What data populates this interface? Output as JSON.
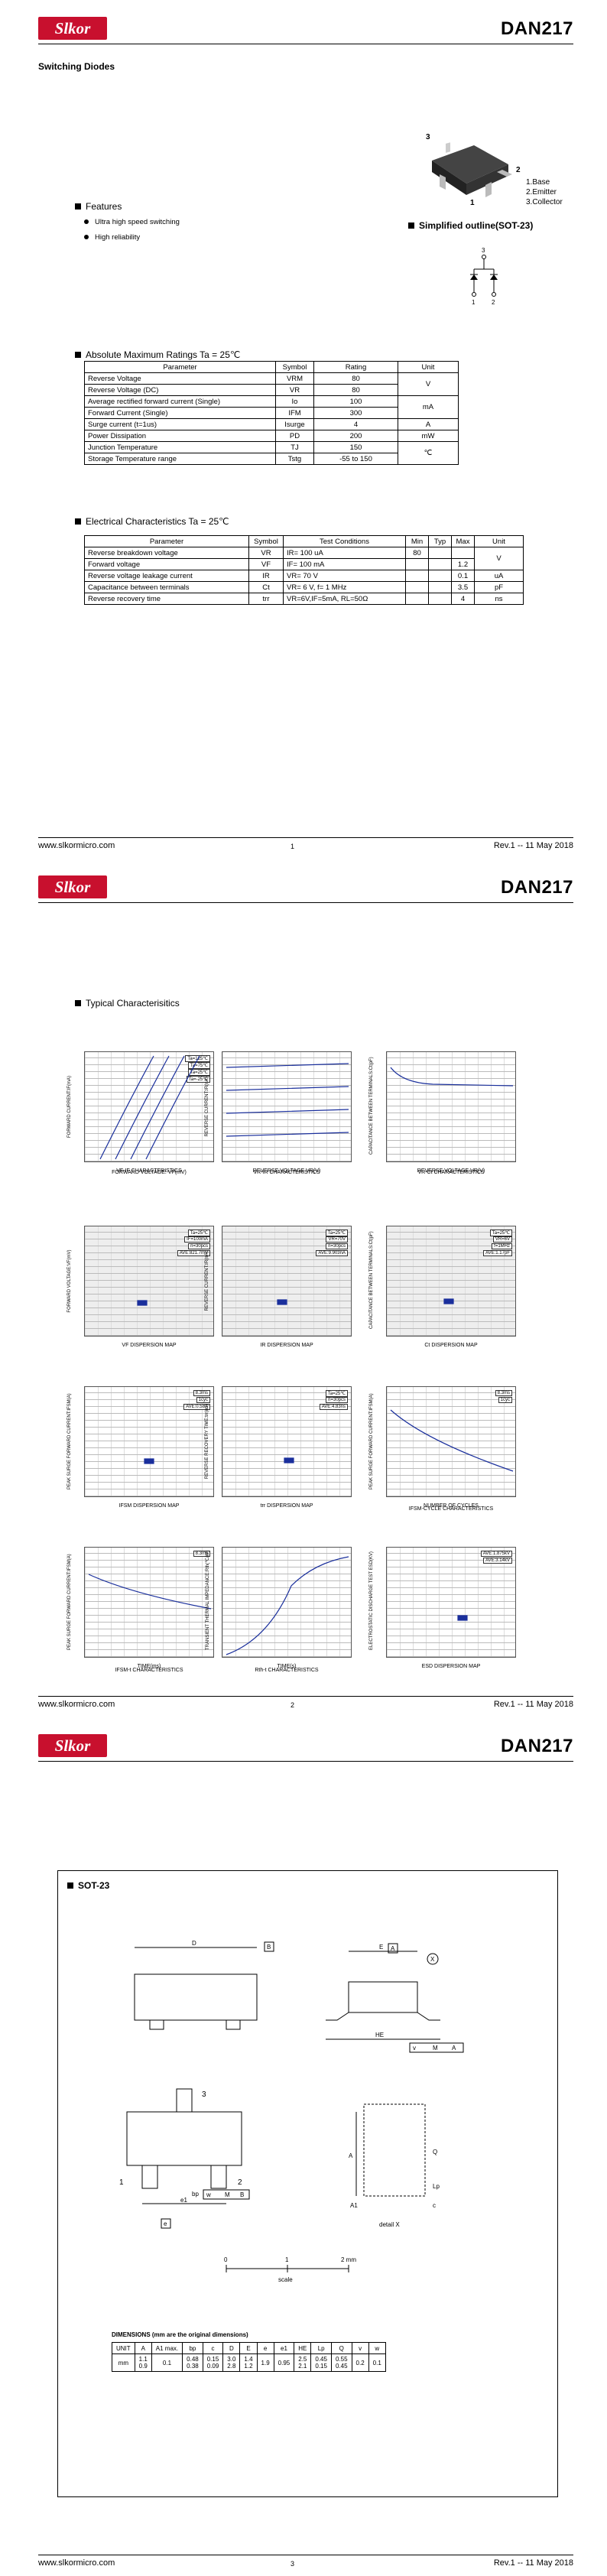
{
  "part": "DAN217",
  "brand": "Slkor",
  "subtitle": "Switching Diodes",
  "features": {
    "title": "Features",
    "items": [
      "Ultra high speed switching",
      "High reliability"
    ]
  },
  "pins": {
    "n3": "3",
    "n2": "2",
    "n1": "1",
    "items": [
      "1.Base",
      "2.Emitter",
      "3.Collector"
    ]
  },
  "outline_title": "Simplified outline(SOT-23)",
  "amr": {
    "title": "Absolute Maximum Ratings Ta = 25℃",
    "headers": [
      "Parameter",
      "Symbol",
      "Rating",
      "Unit"
    ],
    "rows": [
      [
        "Reverse  Voltage",
        "VRM",
        "80"
      ],
      [
        "Reverse  Voltage (DC)",
        "VR",
        "80"
      ],
      [
        "Average rectified forward current (Single)",
        "Io",
        "100"
      ],
      [
        "Forward  Current  (Single)",
        "IFM",
        "300"
      ],
      [
        "Surge current (t=1us)",
        "Isurge",
        "4"
      ],
      [
        "Power Dissipation",
        "PD",
        "200"
      ],
      [
        "Junction Temperature",
        "TJ",
        "150"
      ],
      [
        "Storage Temperature range",
        "Tstg",
        "-55 to 150"
      ]
    ],
    "units": [
      "V",
      "mA",
      "A",
      "mW",
      "℃"
    ]
  },
  "elec": {
    "title": "Electrical Characteristics Ta = 25℃",
    "headers": [
      "Parameter",
      "Symbol",
      "Test Conditions",
      "Min",
      "Typ",
      "Max",
      "Unit"
    ],
    "rows": [
      [
        "Reverse breakdown voltage",
        "VR",
        "IR= 100 uA",
        "80",
        "",
        "",
        ""
      ],
      [
        "Forward voltage",
        "VF",
        "IF= 100 mA",
        "",
        "",
        "1.2",
        ""
      ],
      [
        "Reverse voltage leakage current",
        "IR",
        "VR= 70 V",
        "",
        "",
        "0.1",
        "uA"
      ],
      [
        "Capacitance between terminals",
        "Ct",
        "VR= 6 V, f= 1 MHz",
        "",
        "",
        "3.5",
        "pF"
      ],
      [
        "Reverse recovery time",
        "trr",
        "VR=6V,IF=5mA, RL=50Ω",
        "",
        "",
        "4",
        "ns"
      ]
    ],
    "unit_v": "V"
  },
  "footer": {
    "url": "www.slkormicro.com",
    "rev": "Rev.1 -- 11 May 2018",
    "p1": "1",
    "p2": "2",
    "p3": "3"
  },
  "typical": {
    "title": "Typical  Characterisitics",
    "captions": [
      "VF-IF CHARACTERISTICS",
      "REVERSE VOLTAGE VR(V)",
      "REVERSE VOLTAGE VR(V)",
      "VF DISPERSION MAP",
      "IR DISPERSION MAP",
      "Ct DISPERSION MAP",
      "IFSM DISPERSION MAP",
      "trr DISPERSION MAP",
      "NUMBER OF CYCLES",
      "TIME(ms)",
      "TIME(s)",
      "ESD DISPERSION MAP"
    ],
    "sub_captions": [
      "FORWARD VOLTAGE: VF(mV)",
      "VR-IR CHARACTERISTICS",
      "VR-Ct CHARACTERISTICS",
      "IFSM-CYCLE CHARACTERISTICS",
      "IFSM-t CHARACTERISTICS",
      "Rth-t CHARACTERISTICS"
    ],
    "ylabels": [
      "FORWARD CURRENT:IF(mA)",
      "REVERSE CURRENT:IR(nA)",
      "CAPACITANCE BETWEEN TERMINALS:Ct(pF)",
      "FORWARD VOLTAGE:VF(mV)",
      "REVERSE CURRENT:IR(nA)",
      "CAPACITANCE BETWEEN TERMINALS:Ct(pF)",
      "PEAK SURGE FORWARD CURRENT:IFSM(A)",
      "REVERSE RECOVERY TIME:trr(ns)",
      "PEAK SURGE FORWARD CURRENT:IFSM(A)",
      "PEAK SURGE FORWARD CURRENT:IFSM(A)",
      "TRANSIENT THERMAL IMPEDANCE:Rth(℃/W)",
      "ELECTROSTATIC DISCHARGE TEST ESD(KV)"
    ],
    "annotations": [
      "Ta=125℃",
      "Ta=75℃",
      "Ta=25℃",
      "Ta=-25℃",
      "AVE:821.7mV",
      "AVE:9.903nA",
      "AVE:1.17pF",
      "AVE:0.58A",
      "AVE:4.83ns",
      "AVE:1.875kV",
      "AVE:3.14kV",
      "Ta=25℃",
      "IF=100mA",
      "n=30pcs",
      "VR=70V",
      "VR=6V",
      "f=1MHz",
      "8.3ms",
      "1cyc"
    ]
  },
  "package": {
    "title": "SOT-23",
    "dim_title": "DIMENSIONS (mm are the original dimensions)",
    "headers": [
      "UNIT",
      "A",
      "A1 max.",
      "bp",
      "c",
      "D",
      "E",
      "e",
      "e1",
      "HE",
      "Lp",
      "Q",
      "v",
      "w"
    ],
    "row1": [
      "mm",
      "1.1\n0.9",
      "0.1",
      "0.48\n0.38",
      "0.15\n0.09",
      "3.0\n2.8",
      "1.4\n1.2",
      "1.9",
      "0.95",
      "2.5\n2.1",
      "0.45\n0.15",
      "0.55\n0.45",
      "0.2",
      "0.1"
    ],
    "scale": [
      "0",
      "1",
      "2 mm"
    ],
    "scale_label": "scale",
    "detail": "detail X",
    "labels": [
      "D",
      "B",
      "E",
      "A",
      "X",
      "HE",
      "v",
      "M",
      "A",
      "A",
      "A1",
      "Q",
      "Lp",
      "c",
      "1",
      "2",
      "3",
      "bp",
      "w",
      "M",
      "B",
      "e1",
      "e"
    ]
  }
}
